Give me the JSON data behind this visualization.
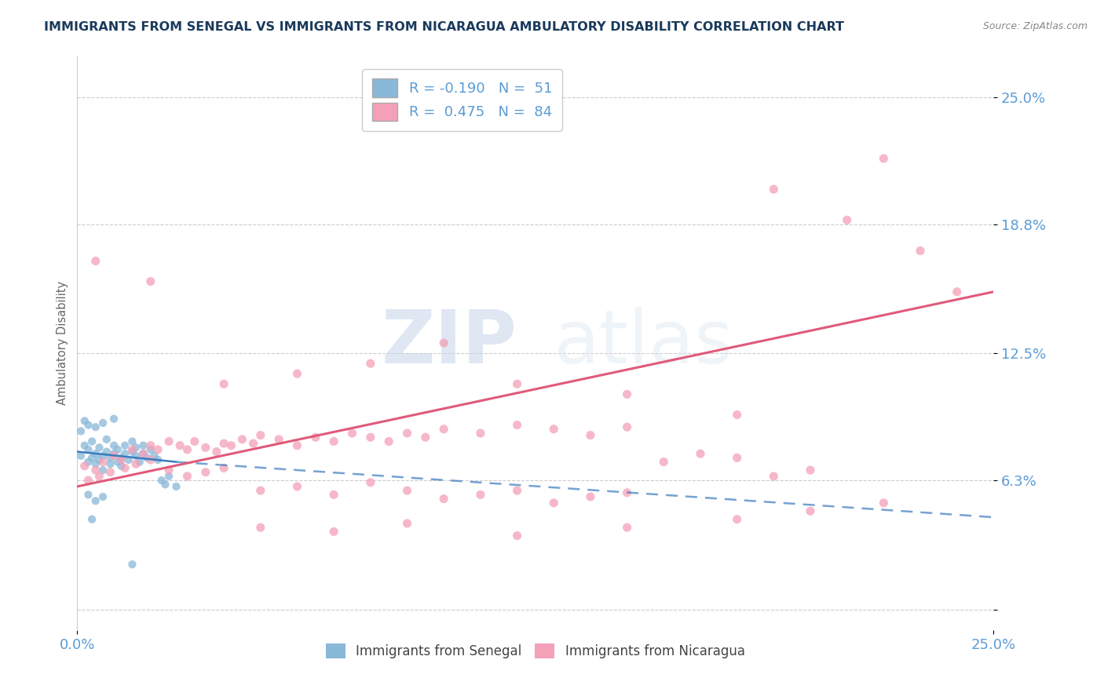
{
  "title": "IMMIGRANTS FROM SENEGAL VS IMMIGRANTS FROM NICARAGUA AMBULATORY DISABILITY CORRELATION CHART",
  "source_text": "Source: ZipAtlas.com",
  "watermark_zip": "ZIP",
  "watermark_atlas": "atlas",
  "xlabel": "",
  "ylabel": "Ambulatory Disability",
  "xlim": [
    0.0,
    0.25
  ],
  "ylim": [
    -0.01,
    0.27
  ],
  "yticks": [
    0.0,
    0.063,
    0.125,
    0.188,
    0.25
  ],
  "ytick_labels": [
    "",
    "6.3%",
    "12.5%",
    "18.8%",
    "25.0%"
  ],
  "xticks": [
    0.0,
    0.25
  ],
  "xtick_labels": [
    "0.0%",
    "25.0%"
  ],
  "blue_color": "#89b8d8",
  "pink_color": "#f4a0b8",
  "blue_line_color": "#3a7bbf",
  "pink_line_color": "#e05a7a",
  "title_color": "#1a3a5c",
  "axis_color": "#5b9bd5",
  "R_senegal": -0.19,
  "N_senegal": 51,
  "R_nicaragua": 0.475,
  "N_nicaragua": 84,
  "blue_scatter": [
    [
      0.001,
      0.075
    ],
    [
      0.002,
      0.08
    ],
    [
      0.003,
      0.072
    ],
    [
      0.003,
      0.078
    ],
    [
      0.004,
      0.074
    ],
    [
      0.004,
      0.082
    ],
    [
      0.005,
      0.076
    ],
    [
      0.005,
      0.071
    ],
    [
      0.006,
      0.073
    ],
    [
      0.006,
      0.079
    ],
    [
      0.007,
      0.075
    ],
    [
      0.007,
      0.068
    ],
    [
      0.008,
      0.077
    ],
    [
      0.008,
      0.083
    ],
    [
      0.009,
      0.071
    ],
    [
      0.009,
      0.074
    ],
    [
      0.01,
      0.076
    ],
    [
      0.01,
      0.08
    ],
    [
      0.011,
      0.072
    ],
    [
      0.011,
      0.078
    ],
    [
      0.012,
      0.074
    ],
    [
      0.012,
      0.07
    ],
    [
      0.013,
      0.076
    ],
    [
      0.013,
      0.08
    ],
    [
      0.014,
      0.073
    ],
    [
      0.015,
      0.077
    ],
    [
      0.015,
      0.082
    ],
    [
      0.016,
      0.075
    ],
    [
      0.016,
      0.079
    ],
    [
      0.017,
      0.072
    ],
    [
      0.018,
      0.076
    ],
    [
      0.018,
      0.08
    ],
    [
      0.019,
      0.074
    ],
    [
      0.02,
      0.078
    ],
    [
      0.021,
      0.075
    ],
    [
      0.022,
      0.073
    ],
    [
      0.023,
      0.063
    ],
    [
      0.024,
      0.061
    ],
    [
      0.025,
      0.065
    ],
    [
      0.027,
      0.06
    ],
    [
      0.001,
      0.087
    ],
    [
      0.002,
      0.092
    ],
    [
      0.003,
      0.09
    ],
    [
      0.005,
      0.089
    ],
    [
      0.007,
      0.091
    ],
    [
      0.01,
      0.093
    ],
    [
      0.003,
      0.056
    ],
    [
      0.005,
      0.053
    ],
    [
      0.007,
      0.055
    ],
    [
      0.015,
      0.022
    ],
    [
      0.004,
      0.044
    ]
  ],
  "pink_scatter": [
    [
      0.002,
      0.07
    ],
    [
      0.005,
      0.068
    ],
    [
      0.007,
      0.072
    ],
    [
      0.01,
      0.075
    ],
    [
      0.012,
      0.073
    ],
    [
      0.015,
      0.078
    ],
    [
      0.018,
      0.076
    ],
    [
      0.02,
      0.08
    ],
    [
      0.022,
      0.078
    ],
    [
      0.025,
      0.082
    ],
    [
      0.028,
      0.08
    ],
    [
      0.03,
      0.078
    ],
    [
      0.032,
      0.082
    ],
    [
      0.035,
      0.079
    ],
    [
      0.038,
      0.077
    ],
    [
      0.04,
      0.081
    ],
    [
      0.042,
      0.08
    ],
    [
      0.045,
      0.083
    ],
    [
      0.048,
      0.081
    ],
    [
      0.05,
      0.085
    ],
    [
      0.055,
      0.083
    ],
    [
      0.06,
      0.08
    ],
    [
      0.065,
      0.084
    ],
    [
      0.07,
      0.082
    ],
    [
      0.075,
      0.086
    ],
    [
      0.08,
      0.084
    ],
    [
      0.085,
      0.082
    ],
    [
      0.09,
      0.086
    ],
    [
      0.095,
      0.084
    ],
    [
      0.1,
      0.088
    ],
    [
      0.11,
      0.086
    ],
    [
      0.12,
      0.09
    ],
    [
      0.13,
      0.088
    ],
    [
      0.14,
      0.085
    ],
    [
      0.15,
      0.089
    ],
    [
      0.16,
      0.072
    ],
    [
      0.17,
      0.076
    ],
    [
      0.18,
      0.074
    ],
    [
      0.19,
      0.065
    ],
    [
      0.2,
      0.068
    ],
    [
      0.003,
      0.063
    ],
    [
      0.006,
      0.065
    ],
    [
      0.009,
      0.067
    ],
    [
      0.013,
      0.069
    ],
    [
      0.016,
      0.071
    ],
    [
      0.02,
      0.073
    ],
    [
      0.025,
      0.068
    ],
    [
      0.03,
      0.065
    ],
    [
      0.035,
      0.067
    ],
    [
      0.04,
      0.069
    ],
    [
      0.05,
      0.058
    ],
    [
      0.06,
      0.06
    ],
    [
      0.07,
      0.056
    ],
    [
      0.08,
      0.062
    ],
    [
      0.09,
      0.058
    ],
    [
      0.1,
      0.054
    ],
    [
      0.11,
      0.056
    ],
    [
      0.12,
      0.058
    ],
    [
      0.13,
      0.052
    ],
    [
      0.14,
      0.055
    ],
    [
      0.15,
      0.057
    ],
    [
      0.05,
      0.04
    ],
    [
      0.07,
      0.038
    ],
    [
      0.09,
      0.042
    ],
    [
      0.12,
      0.036
    ],
    [
      0.15,
      0.04
    ],
    [
      0.18,
      0.044
    ],
    [
      0.2,
      0.048
    ],
    [
      0.22,
      0.052
    ],
    [
      0.02,
      0.16
    ],
    [
      0.04,
      0.11
    ],
    [
      0.06,
      0.115
    ],
    [
      0.08,
      0.12
    ],
    [
      0.1,
      0.13
    ],
    [
      0.12,
      0.11
    ],
    [
      0.15,
      0.105
    ],
    [
      0.18,
      0.095
    ],
    [
      0.005,
      0.17
    ],
    [
      0.19,
      0.205
    ],
    [
      0.22,
      0.22
    ],
    [
      0.24,
      0.155
    ],
    [
      0.23,
      0.175
    ],
    [
      0.21,
      0.19
    ]
  ],
  "blue_line_solid": [
    [
      0.0,
      0.077
    ],
    [
      0.027,
      0.072
    ]
  ],
  "blue_line_dashed": [
    [
      0.027,
      0.072
    ],
    [
      0.25,
      0.045
    ]
  ],
  "pink_line": [
    [
      0.0,
      0.06
    ],
    [
      0.25,
      0.155
    ]
  ]
}
